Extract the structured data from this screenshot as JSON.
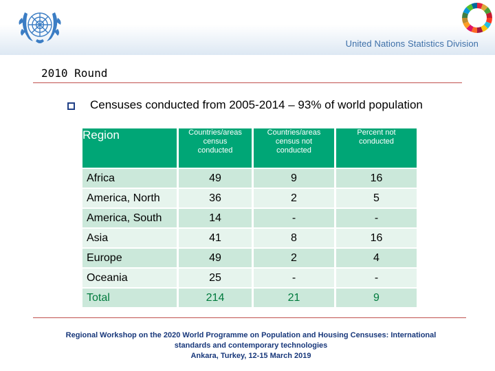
{
  "header": {
    "organization": "United Nations Statistics Division",
    "logo_icon": "un-emblem-icon",
    "sdg_icon": "sdg-wheel-icon"
  },
  "slide": {
    "title": "2010 Round",
    "bullet": "Censuses conducted from 2005-2014 – 93% of world population"
  },
  "table": {
    "columns": {
      "region": "Region",
      "conducted": [
        "Countries/areas",
        "census",
        "conducted"
      ],
      "not_conducted": [
        "Countries/areas",
        "census not",
        "conducted"
      ],
      "percent": [
        "Percent not",
        "conducted"
      ]
    },
    "rows": [
      {
        "region": "Africa",
        "conducted": "49",
        "not_conducted": "9",
        "percent": "16"
      },
      {
        "region": "America, North",
        "conducted": "36",
        "not_conducted": "2",
        "percent": "5"
      },
      {
        "region": "America, South",
        "conducted": "14",
        "not_conducted": "-",
        "percent": "-"
      },
      {
        "region": "Asia",
        "conducted": "41",
        "not_conducted": "8",
        "percent": "16"
      },
      {
        "region": "Europe",
        "conducted": "49",
        "not_conducted": "2",
        "percent": "4"
      },
      {
        "region": "Oceania",
        "conducted": "25",
        "not_conducted": "-",
        "percent": "-"
      },
      {
        "region": "Total",
        "conducted": "214",
        "not_conducted": "21",
        "percent": "9"
      }
    ]
  },
  "footer": {
    "line1": "Regional Workshop on the 2020 World Programme on Population and Housing Censuses: International",
    "line2": "standards and contemporary technologies",
    "line3": "Ankara, Turkey, 12-15 March 2019"
  },
  "colors": {
    "header_green": "#00a676",
    "row_dark": "#cbe8da",
    "row_light": "#e6f4ed",
    "total_text": "#007a3d",
    "rule_red": "#c0504d",
    "footer_blue": "#17377a"
  }
}
